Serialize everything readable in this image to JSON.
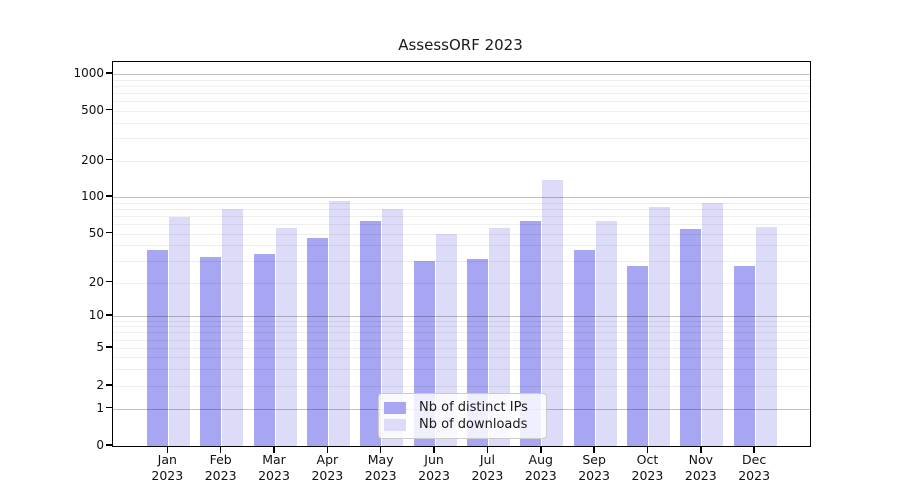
{
  "title": "AssessORF 2023",
  "chart_data": {
    "type": "bar",
    "title": "AssessORF 2023",
    "xlabel": "",
    "ylabel": "",
    "categories": [
      "Jan 2023",
      "Feb 2023",
      "Mar 2023",
      "Apr 2023",
      "May 2023",
      "Jun 2023",
      "Jul 2023",
      "Aug 2023",
      "Sep 2023",
      "Oct 2023",
      "Nov 2023",
      "Dec 2023"
    ],
    "series": [
      {
        "name": "Nb of distinct IPs",
        "color": "#a6a6f2",
        "values": [
          37,
          32,
          34,
          46,
          63,
          30,
          31,
          63,
          37,
          27,
          54,
          27
        ]
      },
      {
        "name": "Nb of downloads",
        "color": "#dcdcf8",
        "values": [
          68,
          80,
          56,
          93,
          80,
          50,
          56,
          138,
          63,
          83,
          90,
          57
        ]
      }
    ],
    "yscale": "symlog",
    "yticks": [
      0,
      1,
      2,
      5,
      10,
      20,
      50,
      100,
      200,
      500,
      1000
    ],
    "ylim": [
      0,
      1400
    ],
    "grid": "on",
    "legend_position": "lower center"
  },
  "legend": {
    "entries": [
      "Nb of distinct IPs",
      "Nb of downloads"
    ]
  }
}
